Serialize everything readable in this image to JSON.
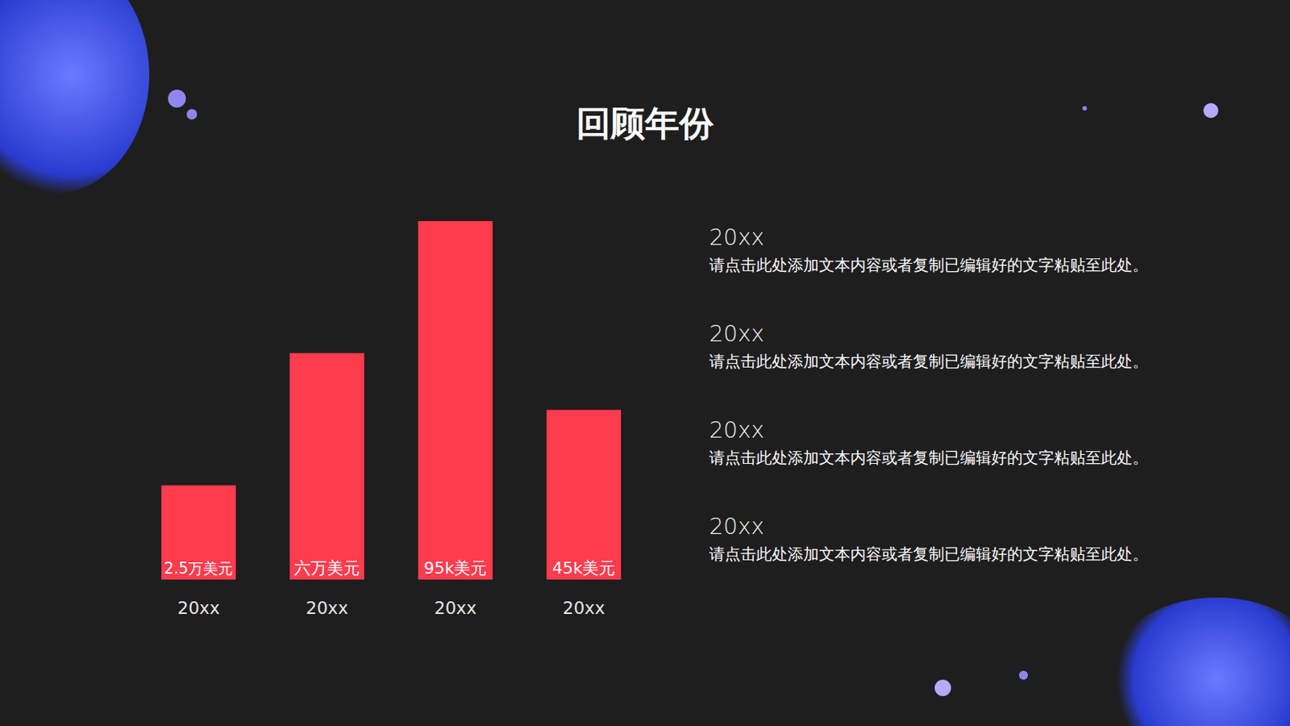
{
  "chart_data": {
    "type": "bar",
    "title": "回顾年份",
    "categories": [
      "20xx",
      "20xx",
      "20xx",
      "20xx"
    ],
    "values": [
      25000,
      60000,
      95000,
      45000
    ],
    "value_labels": [
      "2.5万美元",
      "六万美元",
      "95k美元",
      "45k美元"
    ],
    "color": "#ff3b4e",
    "ylim": [
      0,
      95000
    ],
    "data_labels": true,
    "tick_labels": "x",
    "grid": false
  },
  "notes": [
    {
      "year": "20xx",
      "text": "请点击此处添加文本内容或者复制已编辑好的文字粘贴至此处。"
    },
    {
      "year": "20xx",
      "text": "请点击此处添加文本内容或者复制已编辑好的文字粘贴至此处。"
    },
    {
      "year": "20xx",
      "text": "请点击此处添加文本内容或者复制已编辑好的文字粘贴至此处。"
    },
    {
      "year": "20xx",
      "text": "请点击此处添加文本内容或者复制已编辑好的文字粘贴至此处。"
    }
  ]
}
